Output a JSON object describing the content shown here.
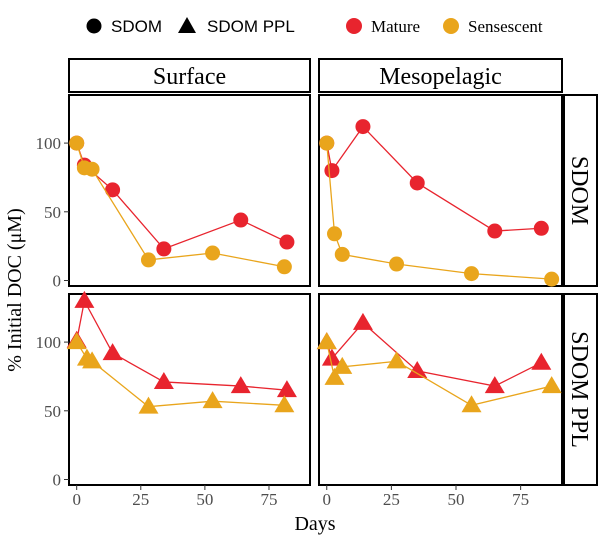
{
  "chart_data": {
    "type": "scatter",
    "xlabel": "Days",
    "ylabel": "% Initial DOC (μM)",
    "xlim": [
      -3,
      91
    ],
    "ylim": [
      -4,
      135
    ],
    "x_ticks": [
      0,
      25,
      50,
      75
    ],
    "y_ticks": [
      0,
      50,
      100
    ],
    "columns": [
      "Surface",
      "Mesopelagic"
    ],
    "rows": [
      "SDOM",
      "SDOM PPL"
    ],
    "legend": {
      "shape_items": [
        {
          "label": "SDOM",
          "shape": "circle"
        },
        {
          "label": "SDOM PPL",
          "shape": "triangle"
        }
      ],
      "color_items": [
        {
          "label": "Mature",
          "color": "#E8242E"
        },
        {
          "label": "Sensescent",
          "color": "#E9A51C"
        }
      ],
      "placement": "top"
    },
    "panels": [
      {
        "column": "Surface",
        "row": "SDOM",
        "shape": "circle",
        "series": [
          {
            "name": "Mature",
            "color": "#E8242E",
            "x": [
              0,
              3,
              14,
              34,
              64,
              82
            ],
            "y": [
              100,
              84,
              66,
              23,
              44,
              28
            ]
          },
          {
            "name": "Sensescent",
            "color": "#E9A51C",
            "x": [
              0,
              3,
              6,
              28,
              53,
              81
            ],
            "y": [
              100,
              82,
              81,
              15,
              20,
              10
            ]
          }
        ]
      },
      {
        "column": "Mesopelagic",
        "row": "SDOM",
        "shape": "circle",
        "series": [
          {
            "name": "Mature",
            "color": "#E8242E",
            "x": [
              0,
              2,
              14,
              35,
              65,
              83
            ],
            "y": [
              100,
              80,
              112,
              71,
              36,
              38
            ]
          },
          {
            "name": "Sensescent",
            "color": "#E9A51C",
            "x": [
              0,
              3,
              6,
              27,
              56,
              87
            ],
            "y": [
              100,
              34,
              19,
              12,
              5,
              1
            ]
          }
        ]
      },
      {
        "column": "Surface",
        "row": "SDOM PPL",
        "shape": "triangle",
        "series": [
          {
            "name": "Mature",
            "color": "#E8242E",
            "x": [
              0,
              3,
              14,
              34,
              64,
              82
            ],
            "y": [
              101,
              130,
              92,
              71,
              68,
              65
            ]
          },
          {
            "name": "Sensescent",
            "color": "#E9A51C",
            "x": [
              0,
              4,
              6,
              28,
              53,
              81
            ],
            "y": [
              100,
              88,
              86,
              53,
              57,
              54
            ]
          }
        ]
      },
      {
        "column": "Mesopelagic",
        "row": "SDOM PPL",
        "shape": "triangle",
        "series": [
          {
            "name": "Mature",
            "color": "#E8242E",
            "x": [
              0,
              2,
              14,
              35,
              65,
              83
            ],
            "y": [
              100,
              88,
              114,
              79,
              68,
              85
            ]
          },
          {
            "name": "Sensescent",
            "color": "#E9A51C",
            "x": [
              0,
              3,
              6,
              27,
              56,
              87
            ],
            "y": [
              100,
              74,
              82,
              86,
              54,
              68
            ]
          }
        ]
      }
    ]
  }
}
